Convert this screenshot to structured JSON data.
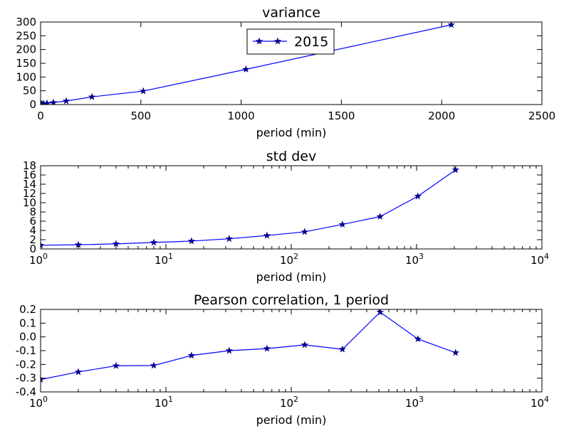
{
  "legend": {
    "label": "2015",
    "position": "upper-center"
  },
  "colors": {
    "line": "#0000ff",
    "marker": "#00008b",
    "axes": "#000000",
    "background": "#ffffff"
  },
  "chart_data": [
    {
      "type": "line",
      "title": "variance",
      "xlabel": "period (min)",
      "ylabel": "",
      "xscale": "linear",
      "xlim": [
        0,
        2500
      ],
      "ylim": [
        0,
        300
      ],
      "xticks": [
        0,
        500,
        1000,
        1500,
        2000,
        2500
      ],
      "xtick_labels": [
        "0",
        "500",
        "1000",
        "1500",
        "2000",
        "2500"
      ],
      "yticks": [
        0,
        50,
        100,
        150,
        200,
        250,
        300
      ],
      "ytick_labels": [
        "0",
        "50",
        "100",
        "150",
        "200",
        "250",
        "300"
      ],
      "grid": false,
      "series": [
        {
          "name": "2015",
          "x": [
            1,
            2,
            4,
            8,
            16,
            32,
            64,
            128,
            256,
            512,
            1024,
            2048
          ],
          "y": [
            0.8,
            1.0,
            1.5,
            2.0,
            3.0,
            4.5,
            7.5,
            13.0,
            28.0,
            49.0,
            128.0,
            290.0
          ]
        }
      ]
    },
    {
      "type": "line",
      "title": "std dev",
      "xlabel": "period (min)",
      "ylabel": "",
      "xscale": "log",
      "xlim": [
        1,
        10000
      ],
      "ylim": [
        0,
        18
      ],
      "xticks": [
        1,
        10,
        100,
        1000,
        10000
      ],
      "xtick_labels": [
        {
          "b": "10",
          "e": "0"
        },
        {
          "b": "10",
          "e": "1"
        },
        {
          "b": "10",
          "e": "2"
        },
        {
          "b": "10",
          "e": "3"
        },
        {
          "b": "10",
          "e": "4"
        }
      ],
      "yticks": [
        0,
        2,
        4,
        6,
        8,
        10,
        12,
        14,
        16,
        18
      ],
      "ytick_labels": [
        "0",
        "2",
        "4",
        "6",
        "8",
        "10",
        "12",
        "14",
        "16",
        "18"
      ],
      "grid": false,
      "series": [
        {
          "name": "2015",
          "x": [
            1,
            2,
            4,
            8,
            16,
            32,
            64,
            128,
            256,
            512,
            1024,
            2048
          ],
          "y": [
            0.8,
            0.9,
            1.1,
            1.4,
            1.7,
            2.2,
            2.9,
            3.7,
            5.3,
            7.0,
            11.4,
            17.1
          ]
        }
      ]
    },
    {
      "type": "line",
      "title": "Pearson correlation, 1 period",
      "xlabel": "period (min)",
      "ylabel": "",
      "xscale": "log",
      "xlim": [
        1,
        10000
      ],
      "ylim": [
        -0.4,
        0.2
      ],
      "xticks": [
        1,
        10,
        100,
        1000,
        10000
      ],
      "xtick_labels": [
        {
          "b": "10",
          "e": "0"
        },
        {
          "b": "10",
          "e": "1"
        },
        {
          "b": "10",
          "e": "2"
        },
        {
          "b": "10",
          "e": "3"
        },
        {
          "b": "10",
          "e": "4"
        }
      ],
      "yticks": [
        -0.4,
        -0.3,
        -0.2,
        -0.1,
        0.0,
        0.1,
        0.2
      ],
      "ytick_labels": [
        "-0.4",
        "-0.3",
        "-0.2",
        "-0.1",
        "0.0",
        "0.1",
        "0.2"
      ],
      "grid": false,
      "series": [
        {
          "name": "2015",
          "x": [
            1,
            2,
            4,
            8,
            16,
            32,
            64,
            128,
            256,
            512,
            1024,
            2048
          ],
          "y": [
            -0.31,
            -0.255,
            -0.21,
            -0.208,
            -0.135,
            -0.1,
            -0.085,
            -0.058,
            -0.09,
            0.18,
            -0.015,
            -0.115
          ]
        }
      ]
    }
  ]
}
